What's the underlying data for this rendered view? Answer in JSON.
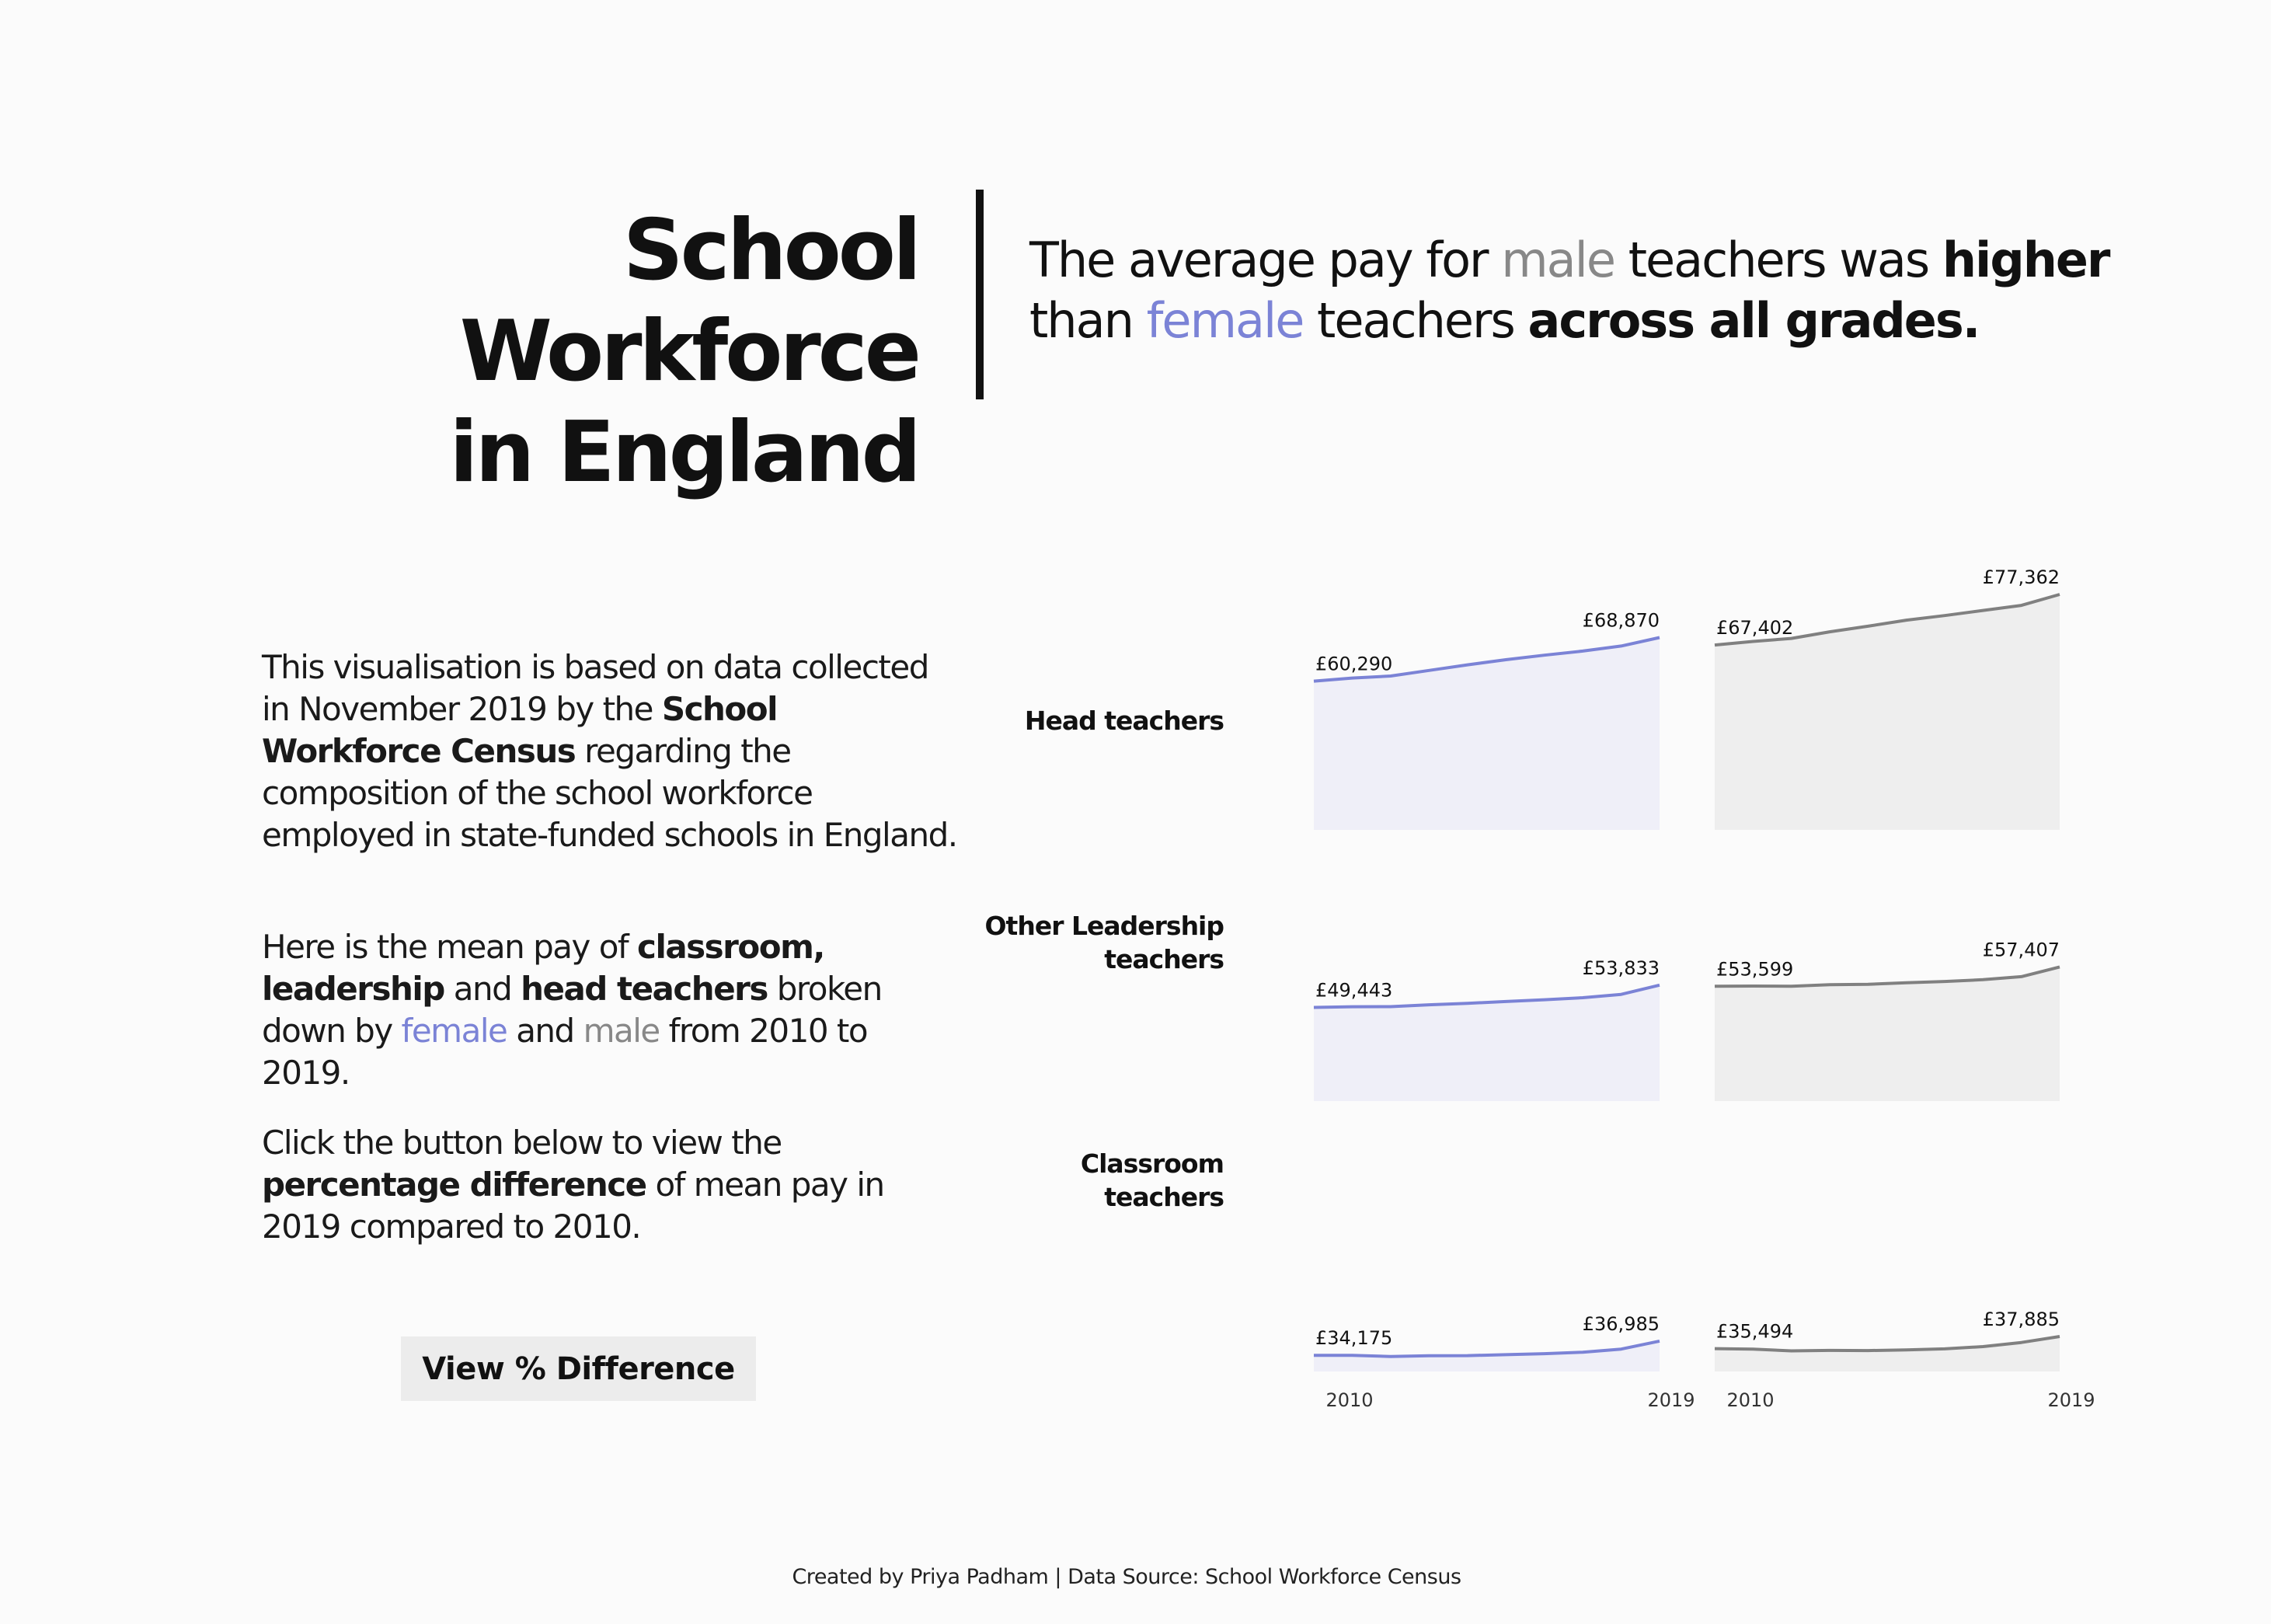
{
  "header": {
    "title_line1": "School Workforce",
    "title_line2": "in England",
    "subtitle": {
      "p1": "The average pay for ",
      "male": "male",
      "p2": " teachers was ",
      "higher": "higher",
      "p3": "than ",
      "female": "female",
      "p4": " teachers ",
      "across": "across all grades."
    }
  },
  "intro": {
    "p1": {
      "a": "This visualisation is based on data collected in November 2019 by the ",
      "b": "School Workforce Census",
      "c": " regarding the composition of the school workforce employed in state-funded schools in England."
    },
    "p2": {
      "a": "Here is the mean pay of ",
      "b": "classroom,",
      "c": " ",
      "d": "leadership",
      "e": " and ",
      "f": "head teachers",
      "g": " broken down by ",
      "h": "female",
      "i": " and ",
      "j": "male",
      "k": " from 2010 to 2019."
    },
    "p3": {
      "a": "Click the button below to view the ",
      "b": "percentage difference",
      "c": " of mean pay in 2019 compared to 2010."
    }
  },
  "button": {
    "label": "View % Difference"
  },
  "footer": "Created by Priya Padham | Data Source: School Workforce Census",
  "colors": {
    "female": "#7b83d6",
    "female_fill": "#efeff8",
    "male": "#808080",
    "male_fill": "#eeeeee",
    "background": "#fbfbfb"
  },
  "chart_data": {
    "type": "area",
    "x": [
      2010,
      2011,
      2012,
      2013,
      2014,
      2015,
      2016,
      2017,
      2018,
      2019
    ],
    "x_tick_labels": [
      "2010",
      "2019"
    ],
    "y_min": 31000,
    "grid": false,
    "rows": [
      {
        "label_line1": "Head teachers",
        "label_line2": "",
        "female": {
          "values": [
            60290,
            60900,
            61300,
            62400,
            63500,
            64500,
            65400,
            66200,
            67200,
            68870
          ],
          "start_label": "£60,290",
          "end_label": "£68,870"
        },
        "male": {
          "values": [
            67402,
            68100,
            68700,
            70000,
            71100,
            72300,
            73200,
            74200,
            75200,
            77362
          ],
          "start_label": "£67,402",
          "end_label": "£77,362"
        }
      },
      {
        "label_line1": "Other Leadership",
        "label_line2": "teachers",
        "female": {
          "values": [
            49443,
            49580,
            49590,
            49950,
            50250,
            50600,
            50950,
            51350,
            52000,
            53833
          ],
          "start_label": "£49,443",
          "end_label": "£53,833"
        },
        "male": {
          "values": [
            53599,
            53650,
            53620,
            53900,
            53980,
            54300,
            54550,
            54900,
            55500,
            57407
          ],
          "start_label": "£53,599",
          "end_label": "£57,407"
        }
      },
      {
        "label_line1": "Classroom",
        "label_line2": "teachers",
        "female": {
          "values": [
            34175,
            34170,
            33950,
            34100,
            34120,
            34300,
            34500,
            34800,
            35400,
            36985
          ],
          "start_label": "£34,175",
          "end_label": "£36,985"
        },
        "male": {
          "values": [
            35494,
            35400,
            35050,
            35150,
            35120,
            35250,
            35450,
            35900,
            36700,
            37885
          ],
          "start_label": "£35,494",
          "end_label": "£37,885"
        }
      }
    ]
  }
}
